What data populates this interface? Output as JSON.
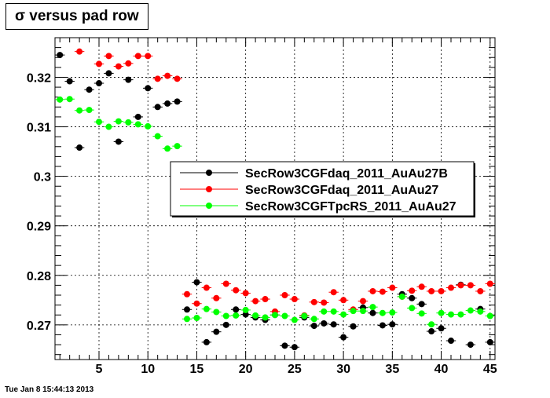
{
  "chart_data": {
    "type": "scatter",
    "title": "σ versus pad row",
    "xlabel": "",
    "ylabel": "",
    "xlim": [
      0.5,
      45.5
    ],
    "ylim": [
      0.263,
      0.328
    ],
    "xticks": [
      5,
      10,
      15,
      20,
      25,
      30,
      35,
      40,
      45
    ],
    "yticks": [
      0.27,
      0.28,
      0.29,
      0.3,
      0.31,
      0.32
    ],
    "grid": true,
    "legend": "center-right",
    "series": [
      {
        "name": "SecRow3CGFdaq_2011_AuAu27B",
        "color": "#000000",
        "x": [
          1,
          2,
          3,
          4,
          5,
          6,
          7,
          8,
          9,
          10,
          11,
          12,
          13,
          14,
          15,
          16,
          17,
          18,
          19,
          20,
          21,
          22,
          23,
          24,
          25,
          26,
          27,
          28,
          29,
          30,
          31,
          32,
          33,
          34,
          35,
          36,
          37,
          38,
          39,
          40,
          41,
          42,
          43,
          44,
          45
        ],
        "y": [
          0.3245,
          0.3192,
          0.3058,
          0.3175,
          0.3188,
          0.3208,
          0.307,
          0.3195,
          0.312,
          0.3178,
          0.314,
          0.3147,
          0.3151,
          0.2731,
          0.2786,
          0.2665,
          0.2686,
          0.27,
          0.2731,
          0.2721,
          0.2715,
          0.271,
          0.272,
          0.2658,
          0.2655,
          0.2715,
          0.2698,
          0.2703,
          0.2701,
          0.2675,
          0.2697,
          0.2735,
          0.2724,
          0.2699,
          0.2701,
          0.2762,
          0.2754,
          0.2742,
          0.2687,
          0.2693,
          0.2668,
          0.2781,
          0.266,
          0.2732,
          0.2665
        ]
      },
      {
        "name": "SecRow3CGFdaq_2011_AuAu27",
        "color": "#ff0000",
        "x": [
          3,
          5,
          6,
          7,
          8,
          9,
          10,
          11,
          12,
          13,
          14,
          15,
          16,
          17,
          18,
          19,
          20,
          21,
          22,
          23,
          24,
          25,
          26,
          27,
          28,
          29,
          30,
          31,
          32,
          33,
          34,
          35,
          36,
          37,
          38,
          39,
          40,
          41,
          42,
          43,
          44,
          45
        ],
        "y": [
          0.3252,
          0.3227,
          0.3243,
          0.3222,
          0.3228,
          0.3243,
          0.3243,
          0.3197,
          0.3203,
          0.3197,
          0.2762,
          0.2743,
          0.2775,
          0.2754,
          0.2783,
          0.277,
          0.2764,
          0.2748,
          0.2752,
          0.2727,
          0.276,
          0.2752,
          0.2719,
          0.2746,
          0.2745,
          0.2766,
          0.275,
          0.2731,
          0.2748,
          0.2768,
          0.2767,
          0.2775,
          0.2757,
          0.2769,
          0.2777,
          0.2768,
          0.2768,
          0.2775,
          0.278,
          0.278,
          0.2768,
          0.2783
        ]
      },
      {
        "name": "SecRow3CGFTpcRS_2011_AuAu27",
        "color": "#00ff00",
        "x": [
          1,
          2,
          3,
          4,
          5,
          6,
          7,
          8,
          9,
          10,
          11,
          12,
          13,
          14,
          15,
          16,
          17,
          18,
          19,
          20,
          21,
          22,
          23,
          24,
          25,
          26,
          27,
          28,
          29,
          30,
          31,
          32,
          33,
          34,
          35,
          36,
          37,
          38,
          39,
          40,
          41,
          42,
          43,
          44,
          45
        ],
        "y": [
          0.3155,
          0.3156,
          0.3133,
          0.3134,
          0.311,
          0.31,
          0.3111,
          0.3109,
          0.3105,
          0.3101,
          0.3081,
          0.3056,
          0.3061,
          0.2712,
          0.2714,
          0.2732,
          0.2726,
          0.2718,
          0.2719,
          0.273,
          0.2719,
          0.2715,
          0.272,
          0.2718,
          0.271,
          0.2718,
          0.2712,
          0.2727,
          0.2727,
          0.2721,
          0.2728,
          0.2728,
          0.2736,
          0.2724,
          0.2725,
          0.2757,
          0.2734,
          0.2723,
          0.2701,
          0.2724,
          0.2721,
          0.2721,
          0.2729,
          0.2727,
          0.2718
        ]
      }
    ]
  },
  "timestamp": "Tue Jan  8 15:44:13 2013"
}
